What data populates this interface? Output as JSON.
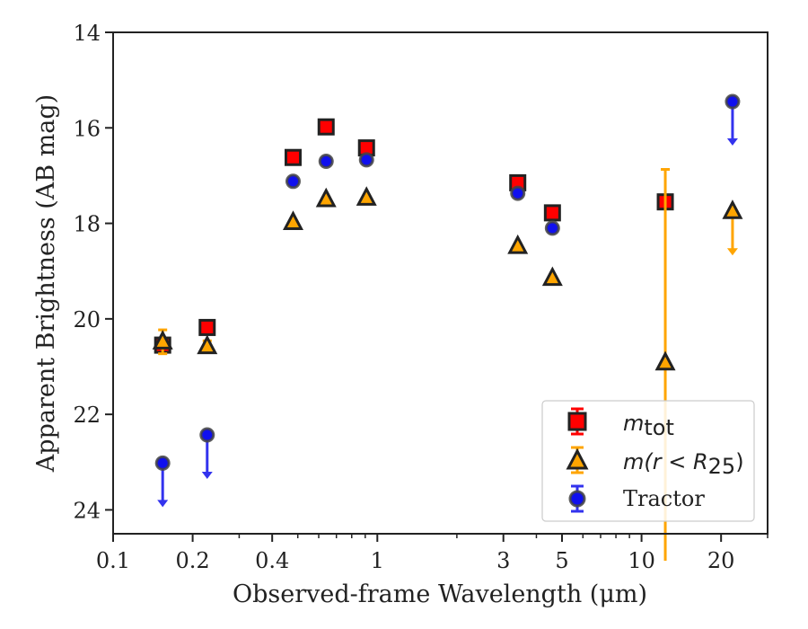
{
  "chart_data": {
    "type": "scatter",
    "xlabel": "Observed-frame Wavelength (μm)",
    "ylabel": "Apparent Brightness (AB mag)",
    "xscale": "log",
    "xlim": [
      0.1,
      30
    ],
    "ylim": [
      24.5,
      14
    ],
    "y_inverted": true,
    "xticks": [
      {
        "value": 0.1,
        "label": "0.1"
      },
      {
        "value": 0.2,
        "label": "0.2"
      },
      {
        "value": 0.4,
        "label": "0.4"
      },
      {
        "value": 1,
        "label": "1"
      },
      {
        "value": 3,
        "label": "3"
      },
      {
        "value": 5,
        "label": "5"
      },
      {
        "value": 10,
        "label": "10"
      },
      {
        "value": 20,
        "label": "20"
      }
    ],
    "yticks": [
      {
        "value": 14,
        "label": "14"
      },
      {
        "value": 16,
        "label": "16"
      },
      {
        "value": 18,
        "label": "18"
      },
      {
        "value": 20,
        "label": "20"
      },
      {
        "value": 22,
        "label": "22"
      },
      {
        "value": 24,
        "label": "24"
      }
    ],
    "grid": false,
    "legend_position": "lower-right",
    "series": [
      {
        "name": "m_tot",
        "legend_main": "m",
        "legend_sub": "tot",
        "marker": "square",
        "color": "#ff0000",
        "edge": "#222222",
        "errcolor": "#ff0000",
        "points": [
          {
            "x": 0.154,
            "y": 20.55,
            "err": 0.1
          },
          {
            "x": 0.227,
            "y": 20.18,
            "err": 0.06
          },
          {
            "x": 0.48,
            "y": 16.62,
            "err": 0.04
          },
          {
            "x": 0.64,
            "y": 15.98,
            "err": 0.04
          },
          {
            "x": 0.91,
            "y": 16.42,
            "err": 0.04
          },
          {
            "x": 3.4,
            "y": 17.15,
            "err": 0.04
          },
          {
            "x": 4.6,
            "y": 17.78,
            "err": 0.04
          },
          {
            "x": 12.3,
            "y": 17.55,
            "err": 0.04
          }
        ]
      },
      {
        "name": "m(r < R_25)",
        "legend_main": "m(r < R",
        "legend_sub": "25",
        "legend_tail": ")",
        "marker": "triangle",
        "color": "#ffa500",
        "edge": "#222222",
        "errcolor": "#ffa500",
        "points": [
          {
            "x": 0.154,
            "y": 20.48,
            "err": 0.25
          },
          {
            "x": 0.227,
            "y": 20.58,
            "err": 0.12
          },
          {
            "x": 0.48,
            "y": 17.98,
            "err": 0.04
          },
          {
            "x": 0.64,
            "y": 17.5,
            "err": 0.04
          },
          {
            "x": 0.91,
            "y": 17.47,
            "err": 0.04
          },
          {
            "x": 3.4,
            "y": 18.48,
            "err": 0.04
          },
          {
            "x": 4.6,
            "y": 19.15,
            "err": 0.04
          },
          {
            "x": 12.3,
            "y": 20.92,
            "err_up": 4.05,
            "err_down": 8.0
          },
          {
            "x": 22.1,
            "y": 17.75,
            "upper_limit": true
          }
        ]
      },
      {
        "name": "Tractor",
        "marker": "circle",
        "color": "#1010ee",
        "edge": "#444444",
        "errcolor": "#3333ee",
        "points": [
          {
            "x": 0.154,
            "y": 23.02,
            "upper_limit": true
          },
          {
            "x": 0.227,
            "y": 22.43,
            "upper_limit": true
          },
          {
            "x": 0.48,
            "y": 17.12,
            "err": 0.04
          },
          {
            "x": 0.64,
            "y": 16.7,
            "err": 0.04
          },
          {
            "x": 0.91,
            "y": 16.67,
            "err": 0.04
          },
          {
            "x": 3.4,
            "y": 17.37,
            "err": 0.04
          },
          {
            "x": 4.6,
            "y": 18.1,
            "err": 0.04
          },
          {
            "x": 22.1,
            "y": 15.45,
            "upper_limit": true
          }
        ]
      }
    ]
  },
  "legend": {
    "m_tot_main": "m",
    "m_tot_sub": "tot",
    "m_r_main": "m(r < R",
    "m_r_sub": "25",
    "m_r_tail": ")",
    "tractor": "Tractor"
  }
}
